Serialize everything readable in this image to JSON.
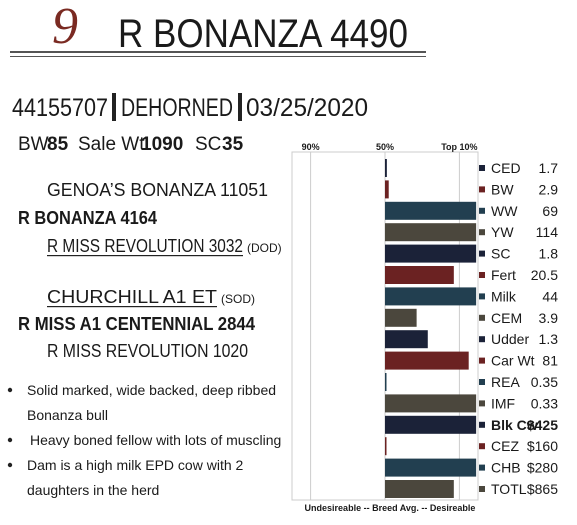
{
  "lot_number": "9",
  "title": "R BONANZA 4490",
  "registration": "44155707",
  "status": "DEHORNED",
  "birth_date": "03/25/2020",
  "stats": [
    {
      "label": "BW",
      "value": "85"
    },
    {
      "label": "Sale Wt",
      "value": "1090"
    },
    {
      "label": "SC",
      "value": "35"
    }
  ],
  "pedigree": [
    {
      "name": "GENOA’S BONANZA 11051"
    },
    {
      "name": "R BONANZA 4164"
    },
    {
      "name": "R MISS REVOLUTION 3032",
      "note": "(DOD)"
    },
    {
      "name": "CHURCHILL A1 ET",
      "note": "(SOD)"
    },
    {
      "name": "R MISS A1 CENTENNIAL 2844"
    },
    {
      "name": "R MISS REVOLUTION 1020"
    }
  ],
  "notes": [
    [
      "Solid marked, wide backed, deep ribbed",
      "Bonanza bull"
    ],
    [
      "Heavy boned fellow with lots of muscling"
    ],
    [
      "Dam is a high milk EPD cow with 2",
      "daughters in the herd"
    ]
  ],
  "chart": {
    "xlim": [
      100,
      0
    ],
    "ticks": [
      {
        "value": 90,
        "label": "90%"
      },
      {
        "value": 50,
        "label": "50%"
      },
      {
        "value": 10,
        "label": "Top 10%"
      }
    ],
    "footer": "Undesireable -- Breed Avg. -- Desireable",
    "traits": [
      {
        "name": "CED",
        "value": "1.7",
        "percentile": 49,
        "color": "#1b2238"
      },
      {
        "name": "BW",
        "value": "2.9",
        "percentile": 48,
        "color": "#6b2222"
      },
      {
        "name": "WW",
        "value": "69",
        "percentile": 1,
        "color": "#223f50"
      },
      {
        "name": "YW",
        "value": "114",
        "percentile": 1,
        "color": "#4b473d"
      },
      {
        "name": "SC",
        "value": "1.8",
        "percentile": 1,
        "color": "#1b2238"
      },
      {
        "name": "Fert",
        "value": "20.5",
        "percentile": 13,
        "color": "#6b2222"
      },
      {
        "name": "Milk",
        "value": "44",
        "percentile": 1,
        "color": "#223f50"
      },
      {
        "name": "CEM",
        "value": "3.9",
        "percentile": 33,
        "color": "#4b473d"
      },
      {
        "name": "Udder",
        "value": "1.3",
        "percentile": 27,
        "color": "#1b2238"
      },
      {
        "name": "Car Wt",
        "value": "81",
        "percentile": 5,
        "color": "#6b2222"
      },
      {
        "name": "REA",
        "value": "0.35",
        "percentile": 50,
        "color": "#223f50"
      },
      {
        "name": "IMF",
        "value": "0.33",
        "percentile": 1,
        "color": "#4b473d"
      },
      {
        "name": "Blk Cw",
        "value": "$425",
        "percentile": 1,
        "color": "#1b2238",
        "bold": true
      },
      {
        "name": "CEZ",
        "value": "$160",
        "percentile": 50,
        "color": "#6b2222"
      },
      {
        "name": "CHB",
        "value": "$280",
        "percentile": 1,
        "color": "#223f50"
      },
      {
        "name": "TOTL",
        "value": "$865",
        "percentile": 13,
        "color": "#4b473d"
      }
    ]
  }
}
